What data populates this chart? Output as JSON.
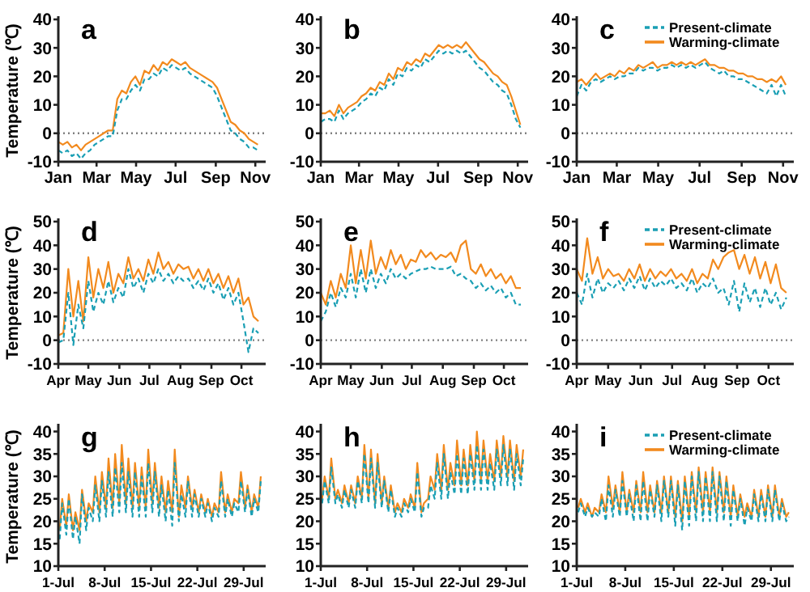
{
  "chart_data": [
    {
      "type": "line",
      "title": "a",
      "ylabel": "Temperature (℃)",
      "ylim": [
        -10,
        40
      ],
      "yticks": [
        -10,
        0,
        10,
        20,
        30,
        40
      ],
      "xlim": [
        "--01-01",
        "--11-12"
      ],
      "xticks": [
        {
          "value": "--01-01",
          "label": "Jan"
        },
        {
          "value": "--03-01",
          "label": "Mar"
        },
        {
          "value": "--05-01",
          "label": "May"
        },
        {
          "value": "--07-01",
          "label": "Jul"
        },
        {
          "value": "--09-01",
          "label": "Sep"
        },
        {
          "value": "--11-01",
          "label": "Nov"
        }
      ],
      "ref_lines": [
        {
          "axis": "y",
          "value": 0,
          "color": "#808080",
          "line_style": "dotted"
        }
      ],
      "legend": false,
      "x": [
        "--01-01",
        "--01-08",
        "--01-15",
        "--01-22",
        "--01-29",
        "--02-05",
        "--02-12",
        "--02-19",
        "--02-26",
        "--03-05",
        "--03-12",
        "--03-19",
        "--03-26",
        "--04-02",
        "--04-09",
        "--04-16",
        "--04-23",
        "--04-30",
        "--05-07",
        "--05-14",
        "--05-21",
        "--05-28",
        "--06-04",
        "--06-11",
        "--06-18",
        "--06-25",
        "--07-02",
        "--07-09",
        "--07-16",
        "--07-23",
        "--07-30",
        "--08-06",
        "--08-13",
        "--08-20",
        "--08-27",
        "--09-03",
        "--09-10",
        "--09-17",
        "--09-24",
        "--10-01",
        "--10-08",
        "--10-15",
        "--10-22",
        "--10-29",
        "--11-05"
      ],
      "series": [
        {
          "color": "#1a9fb4",
          "line_style": "dashed",
          "values": [
            -6,
            -7,
            -6,
            -8,
            -7,
            -9,
            -7,
            -6,
            -4,
            -3,
            -2,
            -1,
            -1,
            8,
            12,
            12,
            15,
            17,
            15,
            19,
            19,
            21,
            20,
            23,
            22,
            24,
            23,
            22,
            23,
            21,
            20,
            19,
            18,
            17,
            16,
            13,
            9,
            5,
            1,
            0,
            -2,
            -3,
            -5,
            -5,
            -6
          ]
        },
        {
          "color": "#f28a1e",
          "line_style": "solid",
          "values": [
            -3,
            -4,
            -3,
            -5,
            -4,
            -6,
            -4,
            -3,
            -2,
            -1,
            0,
            1,
            1,
            12,
            15,
            14,
            18,
            20,
            17,
            22,
            21,
            24,
            22,
            25,
            24,
            26,
            25,
            24,
            25,
            23,
            22,
            21,
            20,
            19,
            18,
            16,
            12,
            8,
            4,
            3,
            1,
            0,
            -2,
            -3,
            -4
          ]
        }
      ]
    },
    {
      "type": "line",
      "title": "b",
      "ylim": [
        -10,
        40
      ],
      "yticks": [
        -10,
        0,
        10,
        20,
        30,
        40
      ],
      "xlim": [
        "--01-01",
        "--11-12"
      ],
      "xticks": [
        {
          "value": "--01-01",
          "label": "Jan"
        },
        {
          "value": "--03-01",
          "label": "Mar"
        },
        {
          "value": "--05-01",
          "label": "May"
        },
        {
          "value": "--07-01",
          "label": "Jul"
        },
        {
          "value": "--09-01",
          "label": "Sep"
        },
        {
          "value": "--11-01",
          "label": "Nov"
        }
      ],
      "ref_lines": [
        {
          "axis": "y",
          "value": 0,
          "color": "#808080",
          "line_style": "dotted"
        }
      ],
      "legend": false,
      "x": [
        "--01-01",
        "--01-08",
        "--01-15",
        "--01-22",
        "--01-29",
        "--02-05",
        "--02-12",
        "--02-19",
        "--02-26",
        "--03-05",
        "--03-12",
        "--03-19",
        "--03-26",
        "--04-02",
        "--04-09",
        "--04-16",
        "--04-23",
        "--04-30",
        "--05-07",
        "--05-14",
        "--05-21",
        "--05-28",
        "--06-04",
        "--06-11",
        "--06-18",
        "--06-25",
        "--07-02",
        "--07-09",
        "--07-16",
        "--07-23",
        "--07-30",
        "--08-06",
        "--08-13",
        "--08-20",
        "--08-27",
        "--09-03",
        "--09-10",
        "--09-17",
        "--09-24",
        "--10-01",
        "--10-08",
        "--10-15",
        "--10-22",
        "--10-29",
        "--11-05"
      ],
      "series": [
        {
          "color": "#1a9fb4",
          "line_style": "dashed",
          "values": [
            4,
            5,
            5,
            4,
            8,
            5,
            7,
            8,
            9,
            11,
            12,
            14,
            13,
            16,
            15,
            19,
            17,
            21,
            20,
            23,
            22,
            24,
            23,
            26,
            25,
            27,
            29,
            28,
            29,
            28,
            29,
            28,
            29,
            27,
            25,
            23,
            22,
            20,
            18,
            17,
            15,
            14,
            10,
            5,
            2
          ]
        },
        {
          "color": "#f28a1e",
          "line_style": "solid",
          "values": [
            7,
            7,
            8,
            6,
            10,
            7,
            9,
            10,
            11,
            13,
            14,
            16,
            15,
            18,
            17,
            21,
            19,
            23,
            22,
            25,
            24,
            26,
            25,
            28,
            27,
            29,
            31,
            30,
            31,
            30,
            31,
            30,
            32,
            30,
            28,
            26,
            25,
            23,
            21,
            20,
            18,
            17,
            13,
            8,
            3
          ]
        }
      ]
    },
    {
      "type": "line",
      "title": "c",
      "ylim": [
        -10,
        40
      ],
      "yticks": [
        -10,
        0,
        10,
        20,
        30,
        40
      ],
      "xlim": [
        "--01-01",
        "--11-12"
      ],
      "xticks": [
        {
          "value": "--01-01",
          "label": "Jan"
        },
        {
          "value": "--03-01",
          "label": "Mar"
        },
        {
          "value": "--05-01",
          "label": "May"
        },
        {
          "value": "--07-01",
          "label": "Jul"
        },
        {
          "value": "--09-01",
          "label": "Sep"
        },
        {
          "value": "--11-01",
          "label": "Nov"
        }
      ],
      "ref_lines": [
        {
          "axis": "y",
          "value": 0,
          "color": "#808080",
          "line_style": "dotted"
        }
      ],
      "legend": "top right",
      "x": [
        "--01-01",
        "--01-08",
        "--01-15",
        "--01-22",
        "--01-29",
        "--02-05",
        "--02-12",
        "--02-19",
        "--02-26",
        "--03-05",
        "--03-12",
        "--03-19",
        "--03-26",
        "--04-02",
        "--04-09",
        "--04-16",
        "--04-23",
        "--04-30",
        "--05-07",
        "--05-14",
        "--05-21",
        "--05-28",
        "--06-04",
        "--06-11",
        "--06-18",
        "--06-25",
        "--07-02",
        "--07-09",
        "--07-16",
        "--07-23",
        "--07-30",
        "--08-06",
        "--08-13",
        "--08-20",
        "--08-27",
        "--09-03",
        "--09-10",
        "--09-17",
        "--09-24",
        "--10-01",
        "--10-08",
        "--10-15",
        "--10-22",
        "--10-29",
        "--11-05"
      ],
      "series": [
        {
          "name": "Present-climate",
          "color": "#1a9fb4",
          "line_style": "dashed",
          "values": [
            13,
            17,
            15,
            18,
            19,
            18,
            19,
            20,
            19,
            20,
            20,
            21,
            21,
            23,
            22,
            23,
            23,
            22,
            23,
            23,
            24,
            23,
            24,
            23,
            24,
            23,
            24,
            25,
            23,
            22,
            21,
            22,
            20,
            20,
            19,
            19,
            18,
            17,
            16,
            15,
            14,
            17,
            13,
            17,
            13
          ]
        },
        {
          "name": "Warming-climate",
          "color": "#f28a1e",
          "line_style": "solid",
          "values": [
            18,
            19,
            17,
            19,
            21,
            19,
            20,
            21,
            20,
            22,
            21,
            23,
            22,
            24,
            23,
            24,
            25,
            23,
            24,
            24,
            25,
            24,
            25,
            24,
            25,
            24,
            25,
            26,
            24,
            24,
            23,
            23,
            22,
            22,
            21,
            21,
            20,
            20,
            19,
            19,
            18,
            19,
            18,
            20,
            17
          ]
        }
      ]
    },
    {
      "type": "line",
      "title": "d",
      "ylabel": "Temperature (℃)",
      "ylim": [
        -10,
        50
      ],
      "yticks": [
        -10,
        0,
        10,
        20,
        30,
        40,
        50
      ],
      "xlim": [
        "--04-01",
        "--10-22"
      ],
      "xticks": [
        {
          "value": "--04-01",
          "label": "Apr"
        },
        {
          "value": "--05-01",
          "label": "May"
        },
        {
          "value": "--06-01",
          "label": "Jun"
        },
        {
          "value": "--07-01",
          "label": "Jul"
        },
        {
          "value": "--08-01",
          "label": "Aug"
        },
        {
          "value": "--09-01",
          "label": "Sep"
        },
        {
          "value": "--10-01",
          "label": "Oct"
        }
      ],
      "ref_lines": [
        {
          "axis": "y",
          "value": 0,
          "color": "#808080",
          "line_style": "dotted"
        }
      ],
      "legend": false,
      "x": [
        "--04-01",
        "--04-06",
        "--04-11",
        "--04-16",
        "--04-21",
        "--04-26",
        "--05-01",
        "--05-06",
        "--05-11",
        "--05-16",
        "--05-21",
        "--05-26",
        "--05-31",
        "--06-05",
        "--06-10",
        "--06-15",
        "--06-20",
        "--06-25",
        "--06-30",
        "--07-05",
        "--07-10",
        "--07-15",
        "--07-20",
        "--07-25",
        "--07-30",
        "--08-04",
        "--08-09",
        "--08-14",
        "--08-19",
        "--08-24",
        "--08-29",
        "--09-03",
        "--09-08",
        "--09-13",
        "--09-18",
        "--09-23",
        "--09-28",
        "--10-03",
        "--10-08",
        "--10-13",
        "--10-18"
      ],
      "series": [
        {
          "color": "#1a9fb4",
          "line_style": "dashed",
          "values": [
            -1,
            0,
            20,
            -2,
            15,
            5,
            25,
            12,
            20,
            15,
            25,
            16,
            22,
            18,
            30,
            22,
            26,
            20,
            28,
            24,
            30,
            25,
            28,
            24,
            27,
            25,
            26,
            22,
            25,
            21,
            26,
            20,
            24,
            17,
            22,
            15,
            20,
            8,
            -5,
            5,
            3
          ]
        },
        {
          "color": "#f28a1e",
          "line_style": "solid",
          "values": [
            2,
            3,
            30,
            10,
            25,
            8,
            35,
            18,
            30,
            22,
            33,
            20,
            28,
            24,
            35,
            26,
            30,
            25,
            34,
            28,
            37,
            30,
            33,
            28,
            32,
            30,
            31,
            26,
            30,
            25,
            30,
            24,
            28,
            22,
            27,
            20,
            26,
            15,
            18,
            10,
            8
          ]
        }
      ]
    },
    {
      "type": "line",
      "title": "e",
      "ylim": [
        -10,
        50
      ],
      "yticks": [
        -10,
        0,
        10,
        20,
        30,
        40,
        50
      ],
      "xlim": [
        "--04-01",
        "--10-22"
      ],
      "xticks": [
        {
          "value": "--04-01",
          "label": "Apr"
        },
        {
          "value": "--05-01",
          "label": "May"
        },
        {
          "value": "--06-01",
          "label": "Jun"
        },
        {
          "value": "--07-01",
          "label": "Jul"
        },
        {
          "value": "--08-01",
          "label": "Aug"
        },
        {
          "value": "--09-01",
          "label": "Sep"
        },
        {
          "value": "--10-01",
          "label": "Oct"
        }
      ],
      "ref_lines": [
        {
          "axis": "y",
          "value": 0,
          "color": "#808080",
          "line_style": "dotted"
        }
      ],
      "legend": false,
      "x": [
        "--04-01",
        "--04-06",
        "--04-11",
        "--04-16",
        "--04-21",
        "--04-26",
        "--05-01",
        "--05-06",
        "--05-11",
        "--05-16",
        "--05-21",
        "--05-26",
        "--05-31",
        "--06-05",
        "--06-10",
        "--06-15",
        "--06-20",
        "--06-25",
        "--06-30",
        "--07-05",
        "--07-10",
        "--07-15",
        "--07-20",
        "--07-25",
        "--07-30",
        "--08-04",
        "--08-09",
        "--08-14",
        "--08-19",
        "--08-24",
        "--08-29",
        "--09-03",
        "--09-08",
        "--09-13",
        "--09-18",
        "--09-23",
        "--09-28",
        "--10-03",
        "--10-08",
        "--10-13",
        "--10-18"
      ],
      "series": [
        {
          "color": "#1a9fb4",
          "line_style": "dashed",
          "values": [
            8,
            12,
            20,
            14,
            22,
            18,
            28,
            18,
            30,
            20,
            30,
            22,
            28,
            24,
            30,
            26,
            28,
            26,
            28,
            29,
            30,
            30,
            31,
            30,
            30,
            30,
            31,
            27,
            28,
            26,
            25,
            22,
            24,
            21,
            23,
            20,
            22,
            18,
            20,
            15,
            15
          ]
        },
        {
          "color": "#f28a1e",
          "line_style": "solid",
          "values": [
            20,
            15,
            25,
            18,
            28,
            22,
            40,
            24,
            38,
            26,
            42,
            28,
            35,
            30,
            38,
            32,
            36,
            30,
            34,
            33,
            38,
            35,
            37,
            34,
            36,
            35,
            37,
            33,
            40,
            42,
            30,
            28,
            32,
            27,
            30,
            26,
            28,
            24,
            27,
            22,
            22
          ]
        }
      ]
    },
    {
      "type": "line",
      "title": "f",
      "ylim": [
        -10,
        50
      ],
      "yticks": [
        -10,
        0,
        10,
        20,
        30,
        40,
        50
      ],
      "xlim": [
        "--04-01",
        "--10-22"
      ],
      "xticks": [
        {
          "value": "--04-01",
          "label": "Apr"
        },
        {
          "value": "--05-01",
          "label": "May"
        },
        {
          "value": "--06-01",
          "label": "Jun"
        },
        {
          "value": "--07-01",
          "label": "Jul"
        },
        {
          "value": "--08-01",
          "label": "Aug"
        },
        {
          "value": "--09-01",
          "label": "Sep"
        },
        {
          "value": "--10-01",
          "label": "Oct"
        }
      ],
      "ref_lines": [
        {
          "axis": "y",
          "value": 0,
          "color": "#808080",
          "line_style": "dotted"
        }
      ],
      "legend": "top right",
      "x": [
        "--04-01",
        "--04-06",
        "--04-11",
        "--04-16",
        "--04-21",
        "--04-26",
        "--05-01",
        "--05-06",
        "--05-11",
        "--05-16",
        "--05-21",
        "--05-26",
        "--05-31",
        "--06-05",
        "--06-10",
        "--06-15",
        "--06-20",
        "--06-25",
        "--06-30",
        "--07-05",
        "--07-10",
        "--07-15",
        "--07-20",
        "--07-25",
        "--07-30",
        "--08-04",
        "--08-09",
        "--08-14",
        "--08-19",
        "--08-24",
        "--08-29",
        "--09-03",
        "--09-08",
        "--09-13",
        "--09-18",
        "--09-23",
        "--09-28",
        "--10-03",
        "--10-08",
        "--10-13",
        "--10-18"
      ],
      "series": [
        {
          "name": "Present-climate",
          "color": "#1a9fb4",
          "line_style": "dashed",
          "values": [
            20,
            15,
            28,
            18,
            26,
            20,
            24,
            22,
            25,
            21,
            26,
            22,
            27,
            21,
            26,
            22,
            25,
            23,
            26,
            22,
            24,
            21,
            26,
            20,
            24,
            22,
            26,
            20,
            22,
            15,
            25,
            12,
            24,
            16,
            22,
            14,
            22,
            15,
            20,
            13,
            18
          ]
        },
        {
          "name": "Warming-climate",
          "color": "#f28a1e",
          "line_style": "solid",
          "values": [
            30,
            25,
            43,
            28,
            35,
            26,
            30,
            27,
            28,
            25,
            30,
            26,
            32,
            25,
            30,
            26,
            29,
            27,
            30,
            26,
            28,
            25,
            30,
            24,
            28,
            26,
            34,
            30,
            35,
            37,
            38,
            30,
            36,
            28,
            35,
            26,
            33,
            24,
            32,
            22,
            20
          ]
        }
      ]
    },
    {
      "type": "line",
      "title": "g",
      "ylabel": "Temperature (℃)",
      "ylim": [
        10,
        41
      ],
      "yticks": [
        10,
        15,
        20,
        25,
        30,
        35,
        40
      ],
      "xlim": [
        "--07-01T00:00",
        "--07-31T20:00"
      ],
      "xticks": [
        {
          "value": "--07-01T00:00",
          "label": "1-Jul"
        },
        {
          "value": "--07-08T00:00",
          "label": "8-Jul"
        },
        {
          "value": "--07-15T00:00",
          "label": "15-Jul"
        },
        {
          "value": "--07-22T00:00",
          "label": "22-Jul"
        },
        {
          "value": "--07-29T00:00",
          "label": "29-Jul"
        }
      ],
      "legend": false,
      "x": [
        "--07-01T05:00",
        "--07-01T14:00",
        "--07-02T05:00",
        "--07-02T14:00",
        "--07-03T05:00",
        "--07-03T14:00",
        "--07-04T05:00",
        "--07-04T14:00",
        "--07-05T05:00",
        "--07-05T14:00",
        "--07-06T05:00",
        "--07-06T14:00",
        "--07-07T05:00",
        "--07-07T14:00",
        "--07-08T05:00",
        "--07-08T14:00",
        "--07-09T05:00",
        "--07-09T14:00",
        "--07-10T05:00",
        "--07-10T14:00",
        "--07-11T05:00",
        "--07-11T14:00",
        "--07-12T05:00",
        "--07-12T14:00",
        "--07-13T05:00",
        "--07-13T14:00",
        "--07-14T05:00",
        "--07-14T14:00",
        "--07-15T05:00",
        "--07-15T14:00",
        "--07-16T05:00",
        "--07-16T14:00",
        "--07-17T05:00",
        "--07-17T14:00",
        "--07-18T05:00",
        "--07-18T14:00",
        "--07-19T05:00",
        "--07-19T14:00",
        "--07-20T05:00",
        "--07-20T14:00",
        "--07-21T05:00",
        "--07-21T14:00",
        "--07-22T05:00",
        "--07-22T14:00",
        "--07-23T05:00",
        "--07-23T14:00",
        "--07-24T05:00",
        "--07-24T14:00",
        "--07-25T05:00",
        "--07-25T14:00",
        "--07-26T05:00",
        "--07-26T14:00",
        "--07-27T05:00",
        "--07-27T14:00",
        "--07-28T05:00",
        "--07-28T14:00",
        "--07-29T05:00",
        "--07-29T14:00",
        "--07-30T05:00",
        "--07-30T14:00",
        "--07-31T05:00",
        "--07-31T14:00"
      ],
      "series": [
        {
          "color": "#1a9fb4",
          "line_style": "dashed",
          "values": [
            16,
            24,
            17,
            25,
            16,
            21,
            15,
            26,
            18,
            23,
            20,
            28,
            20,
            29,
            21,
            31,
            21,
            32,
            22,
            33,
            22,
            31,
            21,
            31,
            21,
            30,
            21,
            33,
            22,
            31,
            21,
            28,
            20,
            27,
            19,
            33,
            20,
            26,
            21,
            29,
            21,
            26,
            21,
            25,
            21,
            24,
            20,
            23,
            21,
            29,
            21,
            25,
            21,
            24,
            22,
            29,
            22,
            27,
            21,
            25,
            22,
            29
          ]
        },
        {
          "color": "#f28a1e",
          "line_style": "solid",
          "values": [
            18,
            25,
            19,
            26,
            18,
            22,
            18,
            27,
            20,
            24,
            22,
            30,
            22,
            31,
            23,
            34,
            23,
            35,
            24,
            37,
            24,
            34,
            23,
            33,
            23,
            32,
            23,
            36,
            24,
            33,
            23,
            30,
            22,
            29,
            22,
            36,
            21,
            28,
            23,
            30,
            23,
            27,
            22,
            26,
            22,
            25,
            21,
            24,
            22,
            31,
            22,
            26,
            22,
            25,
            24,
            31,
            23,
            28,
            22,
            26,
            23,
            30
          ]
        }
      ]
    },
    {
      "type": "line",
      "title": "h",
      "ylim": [
        10,
        41
      ],
      "yticks": [
        10,
        15,
        20,
        25,
        30,
        35,
        40
      ],
      "xlim": [
        "--07-01T00:00",
        "--07-31T20:00"
      ],
      "xticks": [
        {
          "value": "--07-01T00:00",
          "label": "1-Jul"
        },
        {
          "value": "--07-08T00:00",
          "label": "8-Jul"
        },
        {
          "value": "--07-15T00:00",
          "label": "15-Jul"
        },
        {
          "value": "--07-22T00:00",
          "label": "22-Jul"
        },
        {
          "value": "--07-29T00:00",
          "label": "29-Jul"
        }
      ],
      "legend": false,
      "x": [
        "--07-01T05:00",
        "--07-01T14:00",
        "--07-02T05:00",
        "--07-02T14:00",
        "--07-03T05:00",
        "--07-03T14:00",
        "--07-04T05:00",
        "--07-04T14:00",
        "--07-05T05:00",
        "--07-05T14:00",
        "--07-06T05:00",
        "--07-06T14:00",
        "--07-07T05:00",
        "--07-07T14:00",
        "--07-08T05:00",
        "--07-08T14:00",
        "--07-09T05:00",
        "--07-09T14:00",
        "--07-10T05:00",
        "--07-10T14:00",
        "--07-11T05:00",
        "--07-11T14:00",
        "--07-12T05:00",
        "--07-12T14:00",
        "--07-13T05:00",
        "--07-13T14:00",
        "--07-14T05:00",
        "--07-14T14:00",
        "--07-15T05:00",
        "--07-15T14:00",
        "--07-16T05:00",
        "--07-16T14:00",
        "--07-17T05:00",
        "--07-17T14:00",
        "--07-18T05:00",
        "--07-18T14:00",
        "--07-19T05:00",
        "--07-19T14:00",
        "--07-20T05:00",
        "--07-20T14:00",
        "--07-21T05:00",
        "--07-21T14:00",
        "--07-22T05:00",
        "--07-22T14:00",
        "--07-23T05:00",
        "--07-23T14:00",
        "--07-24T05:00",
        "--07-24T14:00",
        "--07-25T05:00",
        "--07-25T14:00",
        "--07-26T05:00",
        "--07-26T14:00",
        "--07-27T05:00",
        "--07-27T14:00",
        "--07-28T05:00",
        "--07-28T14:00",
        "--07-29T05:00",
        "--07-29T14:00",
        "--07-30T05:00",
        "--07-30T14:00",
        "--07-31T05:00",
        "--07-31T14:00"
      ],
      "series": [
        {
          "color": "#1a9fb4",
          "line_style": "dashed",
          "values": [
            24,
            29,
            24,
            32,
            24,
            26,
            23,
            27,
            23,
            27,
            23,
            29,
            24,
            35,
            24,
            34,
            23,
            33,
            23,
            29,
            22,
            27,
            21,
            23,
            21,
            24,
            22,
            25,
            22,
            31,
            21,
            23,
            23,
            28,
            25,
            33,
            25,
            35,
            25,
            31,
            26,
            35,
            26,
            34,
            26,
            35,
            27,
            37,
            27,
            36,
            27,
            33,
            27,
            36,
            28,
            37,
            28,
            36,
            27,
            35,
            28,
            34
          ]
        },
        {
          "color": "#f28a1e",
          "line_style": "solid",
          "values": [
            25,
            30,
            25,
            34,
            25,
            27,
            24,
            28,
            24,
            28,
            24,
            30,
            25,
            37,
            25,
            36,
            24,
            35,
            24,
            30,
            23,
            28,
            22,
            24,
            22,
            25,
            23,
            26,
            23,
            33,
            22,
            24,
            25,
            30,
            27,
            35,
            27,
            37,
            27,
            33,
            28,
            38,
            28,
            36,
            28,
            37,
            29,
            40,
            29,
            38,
            29,
            35,
            29,
            38,
            30,
            39,
            30,
            38,
            29,
            37,
            30,
            36
          ]
        }
      ]
    },
    {
      "type": "line",
      "title": "i",
      "ylim": [
        10,
        41
      ],
      "yticks": [
        10,
        15,
        20,
        25,
        30,
        35,
        40
      ],
      "xlim": [
        "--07-01T00:00",
        "--07-31T20:00"
      ],
      "xticks": [
        {
          "value": "--07-01T00:00",
          "label": "1-Jul"
        },
        {
          "value": "--07-08T00:00",
          "label": "8-Jul"
        },
        {
          "value": "--07-15T00:00",
          "label": "15-Jul"
        },
        {
          "value": "--07-22T00:00",
          "label": "22-Jul"
        },
        {
          "value": "--07-29T00:00",
          "label": "29-Jul"
        }
      ],
      "legend": "top right",
      "x": [
        "--07-01T05:00",
        "--07-01T14:00",
        "--07-02T05:00",
        "--07-02T14:00",
        "--07-03T05:00",
        "--07-03T14:00",
        "--07-04T05:00",
        "--07-04T14:00",
        "--07-05T05:00",
        "--07-05T14:00",
        "--07-06T05:00",
        "--07-06T14:00",
        "--07-07T05:00",
        "--07-07T14:00",
        "--07-08T05:00",
        "--07-08T14:00",
        "--07-09T05:00",
        "--07-09T14:00",
        "--07-10T05:00",
        "--07-10T14:00",
        "--07-11T05:00",
        "--07-11T14:00",
        "--07-12T05:00",
        "--07-12T14:00",
        "--07-13T05:00",
        "--07-13T14:00",
        "--07-14T05:00",
        "--07-14T14:00",
        "--07-15T05:00",
        "--07-15T14:00",
        "--07-16T05:00",
        "--07-16T14:00",
        "--07-17T05:00",
        "--07-17T14:00",
        "--07-18T05:00",
        "--07-18T14:00",
        "--07-19T05:00",
        "--07-19T14:00",
        "--07-20T05:00",
        "--07-20T14:00",
        "--07-21T05:00",
        "--07-21T14:00",
        "--07-22T05:00",
        "--07-22T14:00",
        "--07-23T05:00",
        "--07-23T14:00",
        "--07-24T05:00",
        "--07-24T14:00",
        "--07-25T05:00",
        "--07-25T14:00",
        "--07-26T05:00",
        "--07-26T14:00",
        "--07-27T05:00",
        "--07-27T14:00",
        "--07-28T05:00",
        "--07-28T14:00",
        "--07-29T05:00",
        "--07-29T14:00",
        "--07-30T05:00",
        "--07-30T14:00",
        "--07-31T05:00",
        "--07-31T14:00"
      ],
      "series": [
        {
          "name": "Present-climate",
          "color": "#1a9fb4",
          "line_style": "dashed",
          "values": [
            22,
            24,
            21,
            23,
            21,
            22,
            21,
            25,
            20,
            28,
            21,
            27,
            21,
            29,
            21,
            26,
            20,
            28,
            20,
            29,
            20,
            27,
            21,
            28,
            20,
            29,
            21,
            29,
            19,
            28,
            18,
            29,
            19,
            30,
            20,
            31,
            20,
            30,
            20,
            31,
            20,
            30,
            20,
            29,
            19,
            27,
            20,
            25,
            19,
            23,
            20,
            26,
            20,
            26,
            20,
            27,
            20,
            27,
            20,
            24,
            20,
            21
          ]
        },
        {
          "name": "Warming-climate",
          "color": "#f28a1e",
          "line_style": "solid",
          "values": [
            23,
            25,
            22,
            24,
            21,
            23,
            22,
            26,
            22,
            30,
            23,
            28,
            22,
            31,
            22,
            27,
            22,
            29,
            22,
            31,
            22,
            28,
            22,
            29,
            22,
            30,
            22,
            30,
            21,
            29,
            20,
            30,
            21,
            31,
            22,
            32,
            22,
            31,
            22,
            32,
            22,
            31,
            22,
            30,
            21,
            28,
            21,
            26,
            21,
            24,
            21,
            27,
            21,
            27,
            21,
            28,
            21,
            28,
            21,
            25,
            21,
            22
          ]
        }
      ]
    }
  ]
}
